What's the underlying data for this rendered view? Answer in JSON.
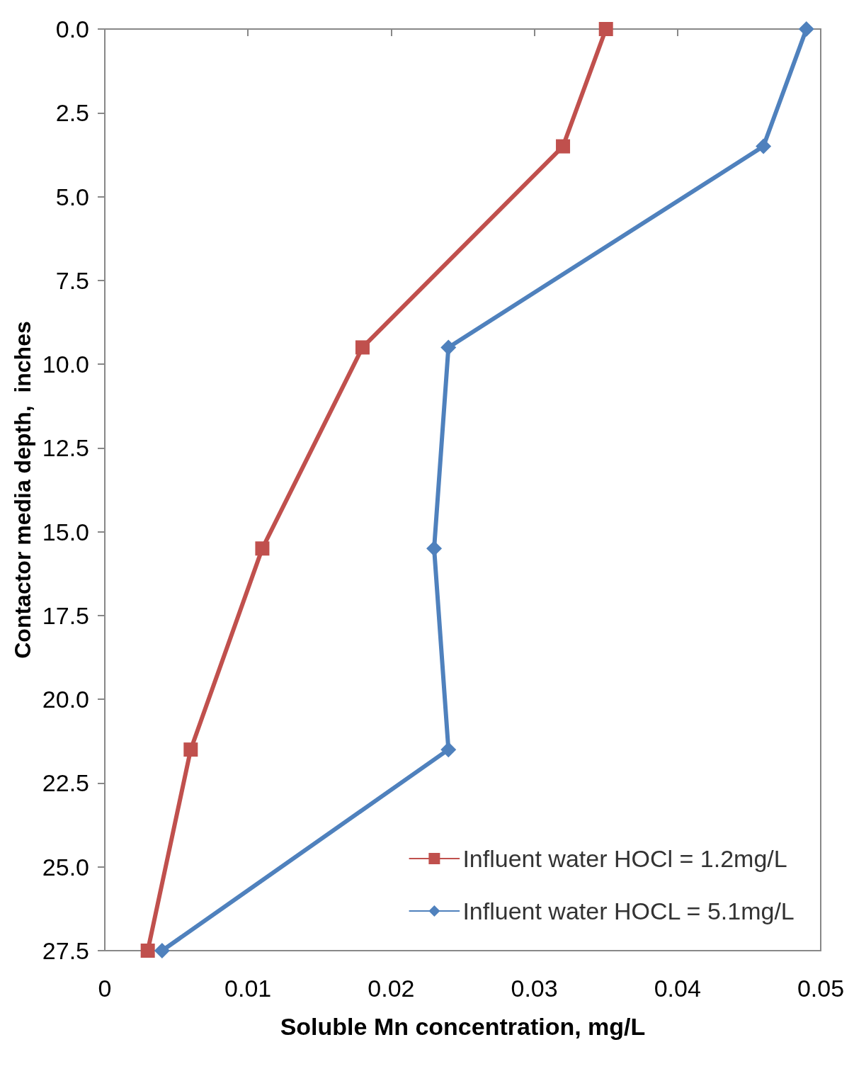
{
  "chart_data": {
    "type": "line",
    "xlabel": "Soluble Mn concentration, mg/L",
    "ylabel": "Contactor media depth,  inches",
    "xlim": [
      0,
      0.05
    ],
    "xticks": [
      0,
      0.01,
      0.02,
      0.03,
      0.04,
      0.05
    ],
    "ylim": [
      27.5,
      0
    ],
    "yticks": [
      {
        "value": 0,
        "label": "0.0"
      },
      {
        "value": 2.5,
        "label": "2.5"
      },
      {
        "value": 5,
        "label": "5.0"
      },
      {
        "value": 7.5,
        "label": "7.5"
      },
      {
        "value": 10,
        "label": "10.0"
      },
      {
        "value": 12.5,
        "label": "12.5"
      },
      {
        "value": 15,
        "label": "15.0"
      },
      {
        "value": 17.5,
        "label": "17.5"
      },
      {
        "value": 20,
        "label": "20.0"
      },
      {
        "value": 22.5,
        "label": "22.5"
      },
      {
        "value": 25,
        "label": "25.0"
      },
      {
        "value": 27.5,
        "label": "27.5"
      }
    ],
    "grid": false,
    "legend": "bottom right",
    "line_style": "solid",
    "series": [
      {
        "name": "Influent water HOCl = 1.2mg/L",
        "color": "#c0504d",
        "marker": "square",
        "x": [
          0.035,
          0.032,
          0.018,
          0.011,
          0.006,
          0.003
        ],
        "values": [
          0,
          3.5,
          9.5,
          15.5,
          21.5,
          27.5
        ]
      },
      {
        "name": "Influent water HOCL = 5.1mg/L",
        "color": "#4f81bd",
        "marker": "diamond",
        "x": [
          0.049,
          0.046,
          0.024,
          0.023,
          0.024,
          0.004
        ],
        "values": [
          0,
          3.5,
          9.5,
          15.5,
          21.5,
          27.5
        ]
      }
    ]
  }
}
